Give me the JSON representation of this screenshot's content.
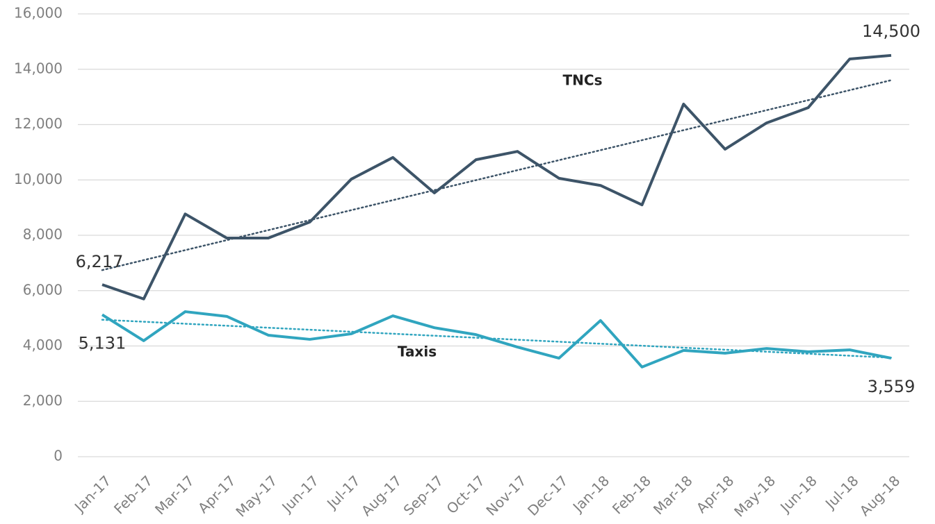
{
  "chart_data": {
    "type": "line",
    "categories": [
      "Jan-17",
      "Feb-17",
      "Mar-17",
      "Apr-17",
      "May-17",
      "Jun-17",
      "Jul-17",
      "Aug-17",
      "Sep-17",
      "Oct-17",
      "Nov-17",
      "Dec-17",
      "Jan-18",
      "Feb-18",
      "Mar-18",
      "Apr-18",
      "May-18",
      "Jun-18",
      "Jul-18",
      "Aug-18"
    ],
    "series": [
      {
        "name": "TNCs",
        "color": "#3d5468",
        "values": [
          6217,
          5700,
          8770,
          7900,
          7900,
          8480,
          10030,
          10810,
          9530,
          10730,
          11030,
          10060,
          9800,
          9100,
          12740,
          11110,
          12060,
          12610,
          14370,
          14500
        ],
        "value_labels": [
          "6,217",
          null,
          null,
          null,
          null,
          null,
          null,
          null,
          null,
          null,
          null,
          null,
          null,
          null,
          null,
          null,
          null,
          null,
          null,
          "14,500"
        ]
      },
      {
        "name": "Taxis",
        "color": "#30a5bf",
        "values": [
          5131,
          4190,
          5240,
          5070,
          4390,
          4240,
          4440,
          5090,
          4660,
          4410,
          3960,
          3560,
          4920,
          3240,
          3840,
          3740,
          3910,
          3790,
          3860,
          3559
        ],
        "value_labels": [
          "5,131",
          null,
          null,
          null,
          null,
          null,
          null,
          null,
          null,
          null,
          null,
          null,
          null,
          null,
          null,
          null,
          null,
          null,
          null,
          "3,559"
        ]
      }
    ],
    "trendline": true,
    "ylim": [
      0,
      16000
    ],
    "yticks": [
      0,
      {
        "value": 2000,
        "label": "2,000"
      },
      {
        "value": 4000,
        "label": "4,000"
      },
      {
        "value": 6000,
        "label": "6,000"
      },
      {
        "value": 8000,
        "label": "8,000"
      },
      {
        "value": 10000,
        "label": "10,000"
      },
      {
        "value": 12000,
        "label": "12,000"
      },
      {
        "value": 14000,
        "label": "14,000"
      },
      {
        "value": 16000,
        "label": "16,000"
      }
    ],
    "grid": true
  }
}
